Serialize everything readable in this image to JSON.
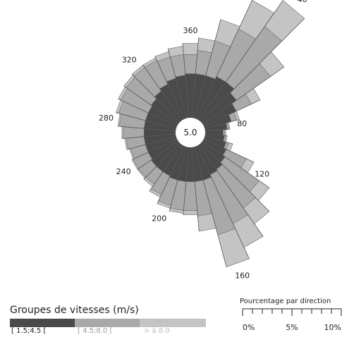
{
  "chart_data": {
    "type": "polar-area",
    "center_label": "5.0",
    "direction_labels": [
      {
        "label": "40",
        "deg": 40
      },
      {
        "label": "80",
        "deg": 80
      },
      {
        "label": "120",
        "deg": 120
      },
      {
        "label": "160",
        "deg": 160
      },
      {
        "label": "200",
        "deg": 200
      },
      {
        "label": "240",
        "deg": 240
      },
      {
        "label": "280",
        "deg": 280
      },
      {
        "label": "320",
        "deg": 320
      },
      {
        "label": "360",
        "deg": 360
      }
    ],
    "directions": [
      0,
      10,
      20,
      30,
      40,
      50,
      60,
      70,
      80,
      90,
      100,
      110,
      120,
      130,
      140,
      150,
      160,
      170,
      180,
      190,
      200,
      210,
      220,
      230,
      240,
      250,
      260,
      270,
      280,
      290,
      300,
      310,
      320,
      330,
      340,
      350
    ],
    "series": [
      {
        "name": "[ 1.5;4.5 [",
        "color": "#4a4a4a",
        "cumulative_percent": [
          3.2,
          3.2,
          3.2,
          3.4,
          3.4,
          3.0,
          2.6,
          2.0,
          1.6,
          1.3,
          1.4,
          1.6,
          1.8,
          2.0,
          2.2,
          2.3,
          2.5,
          2.5,
          2.5,
          2.5,
          2.5,
          2.4,
          2.4,
          2.4,
          2.3,
          2.3,
          2.3,
          2.3,
          2.3,
          2.3,
          2.3,
          2.4,
          2.6,
          2.8,
          3.0,
          3.1
        ]
      },
      {
        "name": "[ 4.5;8.0 [",
        "color": "#a9a9a9",
        "cumulative_percent": [
          4.6,
          4.9,
          5.8,
          7.2,
          8.3,
          6.0,
          3.8,
          2.4,
          1.7,
          1.4,
          1.5,
          1.8,
          3.4,
          5.0,
          5.6,
          6.2,
          6.6,
          5.0,
          4.6,
          4.6,
          4.4,
          3.9,
          3.5,
          3.5,
          3.5,
          3.4,
          3.6,
          3.8,
          4.1,
          4.3,
          4.5,
          4.6,
          4.7,
          4.7,
          4.6,
          4.6
        ]
      },
      {
        "name": "> à 8.0",
        "color": "#c4c4c4",
        "cumulative_percent": [
          5.4,
          5.8,
          7.4,
          9.5,
          10.6,
          7.2,
          4.5,
          2.6,
          1.8,
          1.5,
          1.6,
          2.1,
          4.0,
          5.9,
          7.0,
          8.1,
          9.0,
          6.1,
          4.9,
          4.8,
          4.6,
          4.1,
          3.7,
          3.6,
          3.6,
          3.5,
          3.7,
          3.9,
          4.2,
          4.5,
          4.7,
          4.8,
          4.9,
          4.9,
          5.0,
          5.2
        ]
      }
    ],
    "xlabel": "",
    "ylabel": ""
  },
  "legend": {
    "title": "Groupes de vitesses (m/s)",
    "items": [
      {
        "label": "[ 1.5;4.5 [",
        "color": "#4a4a4a",
        "text_color": "#ffffff"
      },
      {
        "label": "[ 4.5;8.0 [",
        "color": "#a9a9a9",
        "text_color": "#f0f0f0"
      },
      {
        "label": "> à 8.0",
        "color": "#c4c4c4",
        "text_color": "#f5f5f5"
      }
    ]
  },
  "scale": {
    "title": "Pourcentage par direction",
    "ticks": [
      "0%",
      "5%",
      "10%"
    ],
    "max_percent": 10
  }
}
